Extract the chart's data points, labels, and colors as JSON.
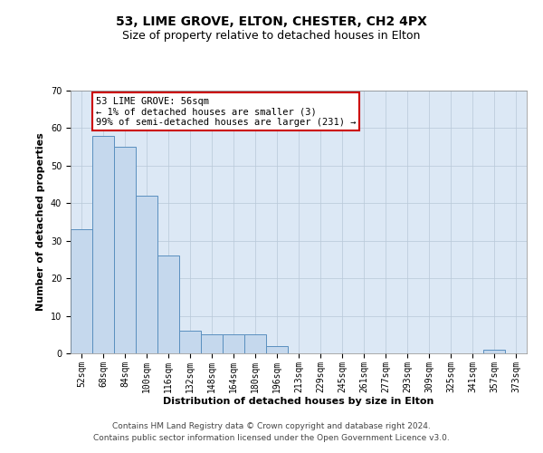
{
  "title": "53, LIME GROVE, ELTON, CHESTER, CH2 4PX",
  "subtitle": "Size of property relative to detached houses in Elton",
  "xlabel": "Distribution of detached houses by size in Elton",
  "ylabel": "Number of detached properties",
  "categories": [
    "52sqm",
    "68sqm",
    "84sqm",
    "100sqm",
    "116sqm",
    "132sqm",
    "148sqm",
    "164sqm",
    "180sqm",
    "196sqm",
    "213sqm",
    "229sqm",
    "245sqm",
    "261sqm",
    "277sqm",
    "293sqm",
    "309sqm",
    "325sqm",
    "341sqm",
    "357sqm",
    "373sqm"
  ],
  "values": [
    33,
    58,
    55,
    42,
    26,
    6,
    5,
    5,
    5,
    2,
    0,
    0,
    0,
    0,
    0,
    0,
    0,
    0,
    0,
    1,
    0
  ],
  "bar_color": "#c5d8ed",
  "bar_edge_color": "#5a8fbf",
  "annotation_text": "53 LIME GROVE: 56sqm\n← 1% of detached houses are smaller (3)\n99% of semi-detached houses are larger (231) →",
  "annotation_color": "#cc0000",
  "ylim": [
    0,
    70
  ],
  "yticks": [
    0,
    10,
    20,
    30,
    40,
    50,
    60,
    70
  ],
  "footer_text": "Contains HM Land Registry data © Crown copyright and database right 2024.\nContains public sector information licensed under the Open Government Licence v3.0.",
  "background_color": "#ffffff",
  "axes_bg_color": "#dce8f5",
  "grid_color": "#b8c8d8",
  "title_fontsize": 10,
  "subtitle_fontsize": 9,
  "axis_label_fontsize": 8,
  "tick_fontsize": 7,
  "annotation_fontsize": 7.5,
  "footer_fontsize": 6.5
}
